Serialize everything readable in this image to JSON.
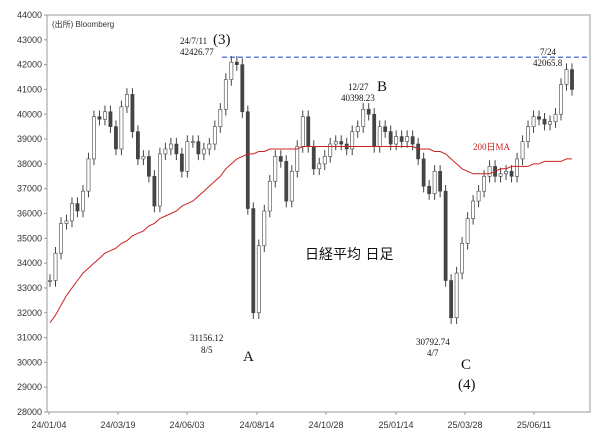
{
  "chart_data": {
    "type": "candlestick",
    "title": "日経平均 日足",
    "source": "(出所) Bloomberg",
    "ylim": [
      28000,
      44000
    ],
    "y_ticks": [
      28000,
      29000,
      30000,
      31000,
      32000,
      33000,
      34000,
      35000,
      36000,
      37000,
      38000,
      39000,
      40000,
      41000,
      42000,
      43000,
      44000
    ],
    "x_ticks": [
      "24/01/04",
      "24/03/19",
      "24/06/03",
      "24/08/14",
      "24/10/28",
      "25/01/14",
      "25/03/28",
      "25/06/11"
    ],
    "series": [
      {
        "kind": "close",
        "values": [
          33300,
          34400,
          35600,
          35700,
          36400,
          36100,
          36900,
          38200,
          39900,
          39800,
          40100,
          39500,
          38600,
          40300,
          40800,
          39300,
          38200,
          38300,
          37500,
          36300,
          38400,
          38600,
          38800,
          38400,
          37700,
          38900,
          38900,
          38400,
          38600,
          38800,
          39500,
          40200,
          41400,
          42100,
          42000,
          40100,
          36200,
          32000,
          34700,
          36100,
          37300,
          38300,
          38100,
          36500,
          37700,
          38700,
          39900,
          38700,
          37800,
          38000,
          38300,
          38800,
          38900,
          38800,
          38600,
          39300,
          39500,
          40200,
          40000,
          38700,
          39500,
          39300,
          38800,
          39100,
          38900,
          39100,
          38800,
          38200,
          37100,
          36800,
          37700,
          36900,
          33300,
          31800,
          33600,
          34800,
          35800,
          36500,
          36900,
          37500,
          37900,
          37500,
          37600,
          37700,
          37500,
          38200,
          38900,
          39500,
          39900,
          39800,
          39600,
          39700,
          40000,
          41200,
          41800,
          41000
        ]
      },
      {
        "kind": "ma",
        "name": "200日MA",
        "values": [
          31600,
          31900,
          32300,
          32700,
          33000,
          33300,
          33600,
          33800,
          34000,
          34200,
          34400,
          34500,
          34600,
          34800,
          34900,
          35100,
          35200,
          35300,
          35500,
          35600,
          35800,
          35900,
          36000,
          36100,
          36300,
          36400,
          36500,
          36700,
          36900,
          37100,
          37300,
          37500,
          37800,
          38000,
          38200,
          38300,
          38400,
          38400,
          38500,
          38500,
          38600,
          38600,
          38600,
          38600,
          38600,
          38600,
          38700,
          38700,
          38700,
          38700,
          38700,
          38700,
          38700,
          38700,
          38700,
          38700,
          38700,
          38700,
          38700,
          38700,
          38700,
          38700,
          38700,
          38700,
          38700,
          38700,
          38700,
          38600,
          38600,
          38600,
          38500,
          38500,
          38400,
          38200,
          38000,
          37800,
          37700,
          37600,
          37600,
          37600,
          37600,
          37700,
          37800,
          37800,
          37900,
          37900,
          37900,
          37900,
          38000,
          38000,
          38100,
          38100,
          38100,
          38100,
          38200,
          38200
        ]
      }
    ],
    "ref_line": {
      "value": 42300,
      "style": "dashed",
      "color": "#3355cc"
    },
    "annotations": [
      {
        "date": "24/7/11",
        "value": "42426.77",
        "label": "(3)"
      },
      {
        "date": "8/5",
        "value": "31156.12",
        "label": "A"
      },
      {
        "date": "12/27",
        "value": "40398.23",
        "label": "B"
      },
      {
        "date": "4/7",
        "value": "30792.74",
        "label": "C",
        "label2": "(4)"
      },
      {
        "date": "7/24",
        "value": "42065.8"
      }
    ],
    "colors": {
      "price": "#444444",
      "ma": "#cc2222",
      "dashed": "#3355cc"
    }
  }
}
